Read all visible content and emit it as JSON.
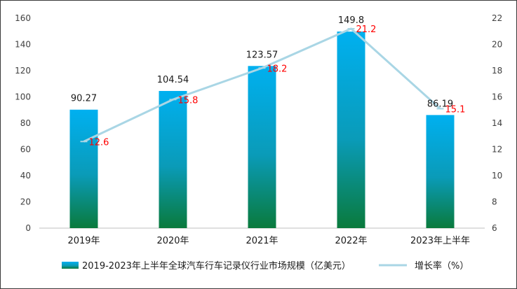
{
  "chart_data": {
    "type": "bar",
    "categories": [
      "2019年",
      "2020年",
      "2021年",
      "2022年",
      "2023年上半年"
    ],
    "series": [
      {
        "name": "2019-2023年上半年全球汽车行车记录仪行业市场规模（亿美元）",
        "type": "bar",
        "axis": "left",
        "values": [
          90.27,
          104.54,
          123.57,
          149.8,
          86.19
        ],
        "value_labels": [
          "90.27",
          "104.54",
          "123.57",
          "149.8",
          "86.19"
        ],
        "color_top": "#00b0f0",
        "color_bottom": "#0a7a3c"
      },
      {
        "name": "增长率（%）",
        "type": "line",
        "axis": "right",
        "values": [
          12.6,
          15.8,
          18.2,
          21.2,
          15.1
        ],
        "value_labels": [
          "12.6",
          "15.8",
          "18.2",
          "21.2",
          "15.1"
        ],
        "color": "#a9d6e5",
        "label_color": "#ff0000"
      }
    ],
    "y_left": {
      "min": 0,
      "max": 160,
      "ticks": [
        "0",
        "20",
        "40",
        "60",
        "80",
        "100",
        "120",
        "140",
        "160"
      ]
    },
    "y_right": {
      "min": 6,
      "max": 22,
      "ticks": [
        "6",
        "8",
        "10",
        "12",
        "14",
        "16",
        "18",
        "20",
        "22"
      ]
    },
    "grid": false,
    "legend_position": "bottom"
  }
}
